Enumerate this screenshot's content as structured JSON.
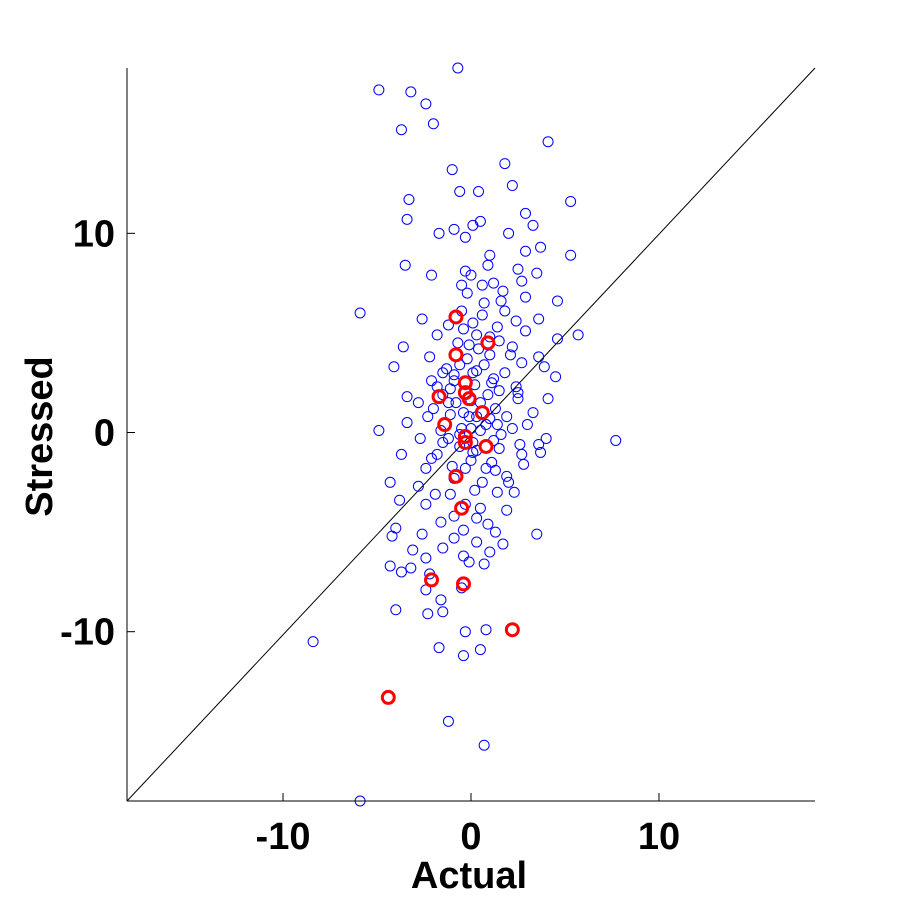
{
  "chart_data": {
    "type": "scatter",
    "xlabel": "Actual",
    "ylabel": "Stressed",
    "xlim": [
      -18.3,
      18.3
    ],
    "ylim": [
      -18.5,
      18.3
    ],
    "xticks": [
      -10,
      0,
      10
    ],
    "yticks": [
      -10,
      0,
      10
    ],
    "grid": false,
    "reference_line": {
      "x": [
        -18.3,
        18.3
      ],
      "y": [
        -18.5,
        18.3
      ],
      "color": "#000000"
    },
    "colors": {
      "base": "#0000ff",
      "highlight": "#ff0000",
      "axis": "#000000"
    },
    "series": [
      {
        "marker": "open-circle-thin",
        "color": "#0000ff",
        "points": [
          [
            -0.7,
            18.3
          ],
          [
            -4.9,
            17.2
          ],
          [
            -3.2,
            17.1
          ],
          [
            -2.4,
            16.5
          ],
          [
            -3.7,
            15.2
          ],
          [
            -2.0,
            15.5
          ],
          [
            4.1,
            14.6
          ],
          [
            -1.0,
            13.2
          ],
          [
            1.8,
            13.5
          ],
          [
            -0.6,
            12.1
          ],
          [
            0.4,
            12.1
          ],
          [
            2.2,
            12.4
          ],
          [
            5.3,
            11.6
          ],
          [
            -3.3,
            11.7
          ],
          [
            -3.4,
            10.7
          ],
          [
            -0.9,
            10.2
          ],
          [
            0.1,
            10.4
          ],
          [
            0.5,
            10.6
          ],
          [
            2.9,
            11.0
          ],
          [
            3.3,
            10.4
          ],
          [
            -1.7,
            10.0
          ],
          [
            -0.3,
            9.8
          ],
          [
            1.0,
            8.9
          ],
          [
            2.0,
            10.0
          ],
          [
            3.7,
            9.3
          ],
          [
            5.3,
            8.9
          ],
          [
            2.9,
            9.1
          ],
          [
            -3.5,
            8.4
          ],
          [
            -2.1,
            7.9
          ],
          [
            0.9,
            8.4
          ],
          [
            -0.3,
            8.1
          ],
          [
            0.0,
            7.9
          ],
          [
            2.5,
            8.2
          ],
          [
            3.5,
            8.0
          ],
          [
            -0.5,
            7.4
          ],
          [
            0.6,
            7.4
          ],
          [
            1.2,
            7.5
          ],
          [
            2.7,
            7.6
          ],
          [
            -0.2,
            7.0
          ],
          [
            1.7,
            7.1
          ],
          [
            2.9,
            6.8
          ],
          [
            -5.9,
            6.0
          ],
          [
            -2.6,
            5.7
          ],
          [
            -0.5,
            6.1
          ],
          [
            0.7,
            6.5
          ],
          [
            1.8,
            6.1
          ],
          [
            4.6,
            6.6
          ],
          [
            -1.2,
            5.4
          ],
          [
            0.1,
            5.5
          ],
          [
            1.4,
            5.3
          ],
          [
            2.4,
            5.6
          ],
          [
            3.6,
            5.7
          ],
          [
            -3.6,
            4.3
          ],
          [
            -1.8,
            4.9
          ],
          [
            -0.7,
            4.5
          ],
          [
            0.3,
            4.9
          ],
          [
            1.5,
            4.6
          ],
          [
            2.9,
            5.1
          ],
          [
            4.6,
            4.7
          ],
          [
            5.7,
            4.9
          ],
          [
            -4.1,
            3.3
          ],
          [
            -2.2,
            3.8
          ],
          [
            -1.3,
            3.2
          ],
          [
            -0.2,
            3.7
          ],
          [
            0.7,
            3.4
          ],
          [
            2.1,
            3.9
          ],
          [
            3.6,
            3.8
          ],
          [
            -2.1,
            2.6
          ],
          [
            -0.9,
            2.9
          ],
          [
            0.1,
            3.0
          ],
          [
            1.2,
            2.7
          ],
          [
            2.4,
            2.3
          ],
          [
            4.5,
            2.8
          ],
          [
            -3.4,
            1.8
          ],
          [
            -1.5,
            1.9
          ],
          [
            0.0,
            1.6
          ],
          [
            1.3,
            1.2
          ],
          [
            2.5,
            1.7
          ],
          [
            4.1,
            1.7
          ],
          [
            -2.0,
            1.2
          ],
          [
            -1.1,
            0.9
          ],
          [
            -0.1,
            0.8
          ],
          [
            0.8,
            0.4
          ],
          [
            1.9,
            0.8
          ],
          [
            3.3,
            1.0
          ],
          [
            -3.4,
            0.5
          ],
          [
            -1.6,
            0.1
          ],
          [
            -0.5,
            0.2
          ],
          [
            0.5,
            0.1
          ],
          [
            1.6,
            -0.1
          ],
          [
            3.0,
            0.4
          ],
          [
            -4.9,
            0.1
          ],
          [
            -2.7,
            -0.3
          ],
          [
            -1.5,
            -0.5
          ],
          [
            -0.6,
            -0.7
          ],
          [
            0.3,
            -0.9
          ],
          [
            1.5,
            -0.8
          ],
          [
            2.7,
            -1.1
          ],
          [
            7.7,
            -0.4
          ],
          [
            -3.7,
            -1.1
          ],
          [
            -2.1,
            -1.3
          ],
          [
            -1.0,
            -1.7
          ],
          [
            0.0,
            -1.4
          ],
          [
            1.1,
            -1.5
          ],
          [
            2.8,
            -1.6
          ],
          [
            -2.4,
            -1.8
          ],
          [
            -0.9,
            -2.3
          ],
          [
            0.6,
            -2.5
          ],
          [
            1.9,
            -2.2
          ],
          [
            -4.3,
            -2.5
          ],
          [
            -2.8,
            -2.7
          ],
          [
            -1.1,
            -3.1
          ],
          [
            0.2,
            -2.9
          ],
          [
            1.4,
            -3.0
          ],
          [
            2.3,
            -3.0
          ],
          [
            -3.8,
            -3.4
          ],
          [
            -2.4,
            -3.6
          ],
          [
            -0.3,
            -3.6
          ],
          [
            0.5,
            -3.8
          ],
          [
            1.9,
            -3.9
          ],
          [
            -1.6,
            -4.5
          ],
          [
            0.3,
            -4.3
          ],
          [
            -4.0,
            -4.8
          ],
          [
            -2.6,
            -5.1
          ],
          [
            -0.9,
            -5.3
          ],
          [
            0.3,
            -5.5
          ],
          [
            1.3,
            -5.0
          ],
          [
            3.5,
            -5.1
          ],
          [
            -4.2,
            -5.2
          ],
          [
            -3.1,
            -5.9
          ],
          [
            -1.5,
            -5.8
          ],
          [
            -0.4,
            -6.2
          ],
          [
            1.0,
            -6.0
          ],
          [
            -3.2,
            -6.8
          ],
          [
            -2.4,
            -6.3
          ],
          [
            -0.1,
            -6.5
          ],
          [
            0.7,
            -6.6
          ],
          [
            -4.3,
            -6.7
          ],
          [
            -2.2,
            -7.1
          ],
          [
            -3.7,
            -7.0
          ],
          [
            -0.5,
            -7.8
          ],
          [
            -2.4,
            -7.9
          ],
          [
            -1.6,
            -8.4
          ],
          [
            -4.0,
            -8.9
          ],
          [
            -2.3,
            -9.1
          ],
          [
            -1.5,
            -9.0
          ],
          [
            -0.3,
            -10.0
          ],
          [
            0.8,
            -9.9
          ],
          [
            -8.4,
            -10.5
          ],
          [
            -1.7,
            -10.8
          ],
          [
            0.5,
            -10.9
          ],
          [
            -0.4,
            -11.2
          ],
          [
            -1.2,
            -14.5
          ],
          [
            0.7,
            -15.7
          ],
          [
            -5.9,
            -18.5
          ],
          [
            -1.1,
            2.2
          ],
          [
            -0.8,
            1.5
          ],
          [
            -0.4,
            1.0
          ],
          [
            0.9,
            1.9
          ],
          [
            1.5,
            2.1
          ],
          [
            0.2,
            2.4
          ],
          [
            -0.6,
            3.4
          ],
          [
            0.4,
            4.2
          ],
          [
            1.0,
            3.9
          ],
          [
            -1.5,
            3.0
          ],
          [
            -0.1,
            4.4
          ],
          [
            1.8,
            3.0
          ],
          [
            2.7,
            3.5
          ],
          [
            -1.8,
            2.3
          ],
          [
            0.5,
            1.5
          ],
          [
            1.0,
            0.7
          ],
          [
            2.2,
            0.2
          ],
          [
            -0.6,
            -0.1
          ],
          [
            0.0,
            0.2
          ],
          [
            1.2,
            -0.4
          ],
          [
            0.1,
            -1.0
          ],
          [
            -0.3,
            -1.8
          ],
          [
            1.3,
            -1.9
          ],
          [
            2.0,
            -2.5
          ],
          [
            2.6,
            -0.6
          ],
          [
            3.7,
            -1.0
          ],
          [
            -2.3,
            0.8
          ],
          [
            -1.2,
            1.5
          ],
          [
            0.6,
            5.9
          ],
          [
            2.2,
            4.3
          ],
          [
            1.6,
            6.6
          ],
          [
            -0.4,
            5.2
          ],
          [
            1.0,
            4.8
          ],
          [
            0.3,
            3.1
          ],
          [
            -0.9,
            2.6
          ],
          [
            1.4,
            0.4
          ],
          [
            0.1,
            -0.5
          ],
          [
            -1.2,
            -0.3
          ],
          [
            -0.9,
            -4.2
          ],
          [
            -0.4,
            -4.9
          ],
          [
            0.9,
            -4.6
          ],
          [
            1.7,
            -5.6
          ],
          [
            -1.9,
            -3.1
          ],
          [
            -1.8,
            -1.1
          ],
          [
            0.8,
            -1.8
          ],
          [
            -2.8,
            1.5
          ],
          [
            0.3,
            0.8
          ],
          [
            1.1,
            2.5
          ],
          [
            2.5,
            2.0
          ],
          [
            3.9,
            3.3
          ],
          [
            4.0,
            -0.3
          ],
          [
            3.6,
            -0.6
          ]
        ]
      },
      {
        "marker": "open-circle-thick",
        "color": "#ff0000",
        "points": [
          [
            -0.8,
            5.8
          ],
          [
            0.9,
            4.5
          ],
          [
            -0.8,
            3.9
          ],
          [
            -0.3,
            2.5
          ],
          [
            -0.3,
            2.0
          ],
          [
            -0.1,
            1.7
          ],
          [
            -1.7,
            1.8
          ],
          [
            0.6,
            1.0
          ],
          [
            -1.4,
            0.4
          ],
          [
            -0.3,
            -0.2
          ],
          [
            -0.3,
            -0.5
          ],
          [
            0.8,
            -0.7
          ],
          [
            -0.8,
            -2.2
          ],
          [
            -0.5,
            -3.8
          ],
          [
            -2.1,
            -7.4
          ],
          [
            -0.4,
            -7.6
          ],
          [
            2.2,
            -9.9
          ],
          [
            -4.4,
            -13.3
          ]
        ]
      }
    ]
  }
}
